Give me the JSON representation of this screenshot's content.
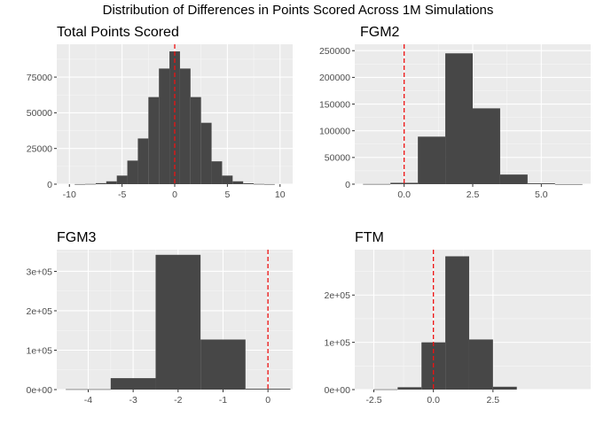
{
  "title": "Distribution of Differences in Points Scored Across 1M Simulations",
  "chart_data": [
    {
      "type": "bar",
      "subtype": "histogram",
      "title": "Total Points Scored",
      "xlim": [
        -11.2,
        11.2
      ],
      "ylim": [
        0,
        98000
      ],
      "xticks": [
        -10,
        -5,
        0,
        5,
        10
      ],
      "xtick_labels": [
        "-10",
        "-5",
        "0",
        "5",
        "10"
      ],
      "yticks": [
        0,
        25000,
        50000,
        75000
      ],
      "ytick_labels": [
        "0",
        "25000",
        "50000",
        "75000"
      ],
      "grid": true,
      "ref_line_x": 0,
      "ref_line_color": "#ee1111",
      "bar_color": "#474747",
      "bin_width": 1,
      "bin_centers": [
        -9,
        -8,
        -7,
        -6,
        -5,
        -4,
        -3,
        -2,
        -1,
        0,
        1,
        2,
        3,
        4,
        5,
        6,
        7,
        8,
        9
      ],
      "values": [
        50,
        150,
        700,
        2000,
        6000,
        16500,
        32000,
        61000,
        81000,
        93000,
        81000,
        61000,
        43000,
        16000,
        6000,
        2000,
        600,
        150,
        50
      ]
    },
    {
      "type": "bar",
      "subtype": "histogram",
      "title": "FGM2",
      "xlim": [
        -1.8,
        6.8
      ],
      "ylim": [
        0,
        262000
      ],
      "xticks": [
        0,
        2.5,
        5
      ],
      "xtick_labels": [
        "0.0",
        "2.5",
        "5.0"
      ],
      "yticks": [
        0,
        50000,
        100000,
        150000,
        200000,
        250000
      ],
      "ytick_labels": [
        "0",
        "50000",
        "100000",
        "150000",
        "200000",
        "250000"
      ],
      "grid": true,
      "ref_line_x": 0,
      "ref_line_color": "#ee1111",
      "bar_color": "#474747",
      "bin_width": 1,
      "bin_centers": [
        -1,
        0,
        1,
        2,
        3,
        4,
        5,
        6
      ],
      "values": [
        300,
        2500,
        89000,
        245000,
        142000,
        18000,
        1500,
        100
      ]
    },
    {
      "type": "bar",
      "subtype": "histogram",
      "title": "FGM3",
      "xlim": [
        -4.7,
        0.55
      ],
      "ylim": [
        0,
        355000
      ],
      "xticks": [
        -4,
        -3,
        -2,
        -1,
        0
      ],
      "xtick_labels": [
        "-4",
        "-3",
        "-2",
        "-1",
        "0"
      ],
      "yticks": [
        0,
        100000,
        200000,
        300000
      ],
      "ytick_labels": [
        "0e+00",
        "1e+05",
        "2e+05",
        "3e+05"
      ],
      "grid": true,
      "ref_line_x": 0,
      "ref_line_color": "#ee1111",
      "bar_color": "#474747",
      "bin_width": 1,
      "bin_centers": [
        -4,
        -3,
        -2,
        -1,
        0
      ],
      "values": [
        800,
        29000,
        342000,
        127000,
        2000
      ]
    },
    {
      "type": "bar",
      "subtype": "histogram",
      "title": "FTM",
      "xlim": [
        -3.3,
        6.6
      ],
      "ylim": [
        0,
        296000
      ],
      "xticks": [
        -2.5,
        0,
        2.5
      ],
      "xtick_labels": [
        "-2.5",
        "0.0",
        "2.5"
      ],
      "yticks": [
        0,
        100000,
        200000
      ],
      "ytick_labels": [
        "0e+00",
        "1e+05",
        "2e+05"
      ],
      "grid": true,
      "ref_line_x": 0,
      "ref_line_color": "#ee1111",
      "bar_color": "#474747",
      "bin_width": 1,
      "bin_centers": [
        -2,
        -1,
        0,
        1,
        2,
        3
      ],
      "values": [
        500,
        5000,
        100000,
        282000,
        106000,
        6000
      ]
    }
  ]
}
